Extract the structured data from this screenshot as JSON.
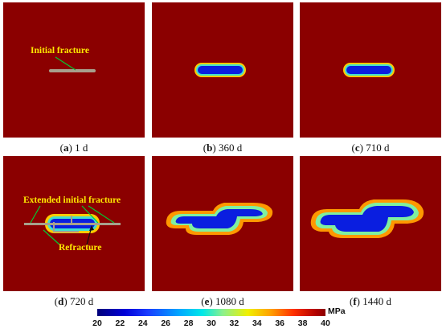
{
  "panels": [
    {
      "letter": "a",
      "label": " 1 d"
    },
    {
      "letter": "b",
      "label": " 360 d"
    },
    {
      "letter": "c",
      "label": " 710 d"
    },
    {
      "letter": "d",
      "label": " 720 d"
    },
    {
      "letter": "e",
      "label": " 1080 d"
    },
    {
      "letter": "f",
      "label": " 1440 d"
    }
  ],
  "annotations": {
    "initial_fracture": "Initial fracture",
    "extended_initial_fracture": "Extended initial fracture",
    "refracture": "Refracture"
  },
  "colorbar": {
    "unit": "MPa",
    "ticks": [
      "20",
      "22",
      "24",
      "26",
      "28",
      "30",
      "32",
      "34",
      "36",
      "38",
      "40"
    ],
    "min": 20,
    "max": 40
  },
  "colors": {
    "background_field": "#8b0000",
    "annotation_text": "#ffe800",
    "annotation_line": "#00cc33"
  }
}
